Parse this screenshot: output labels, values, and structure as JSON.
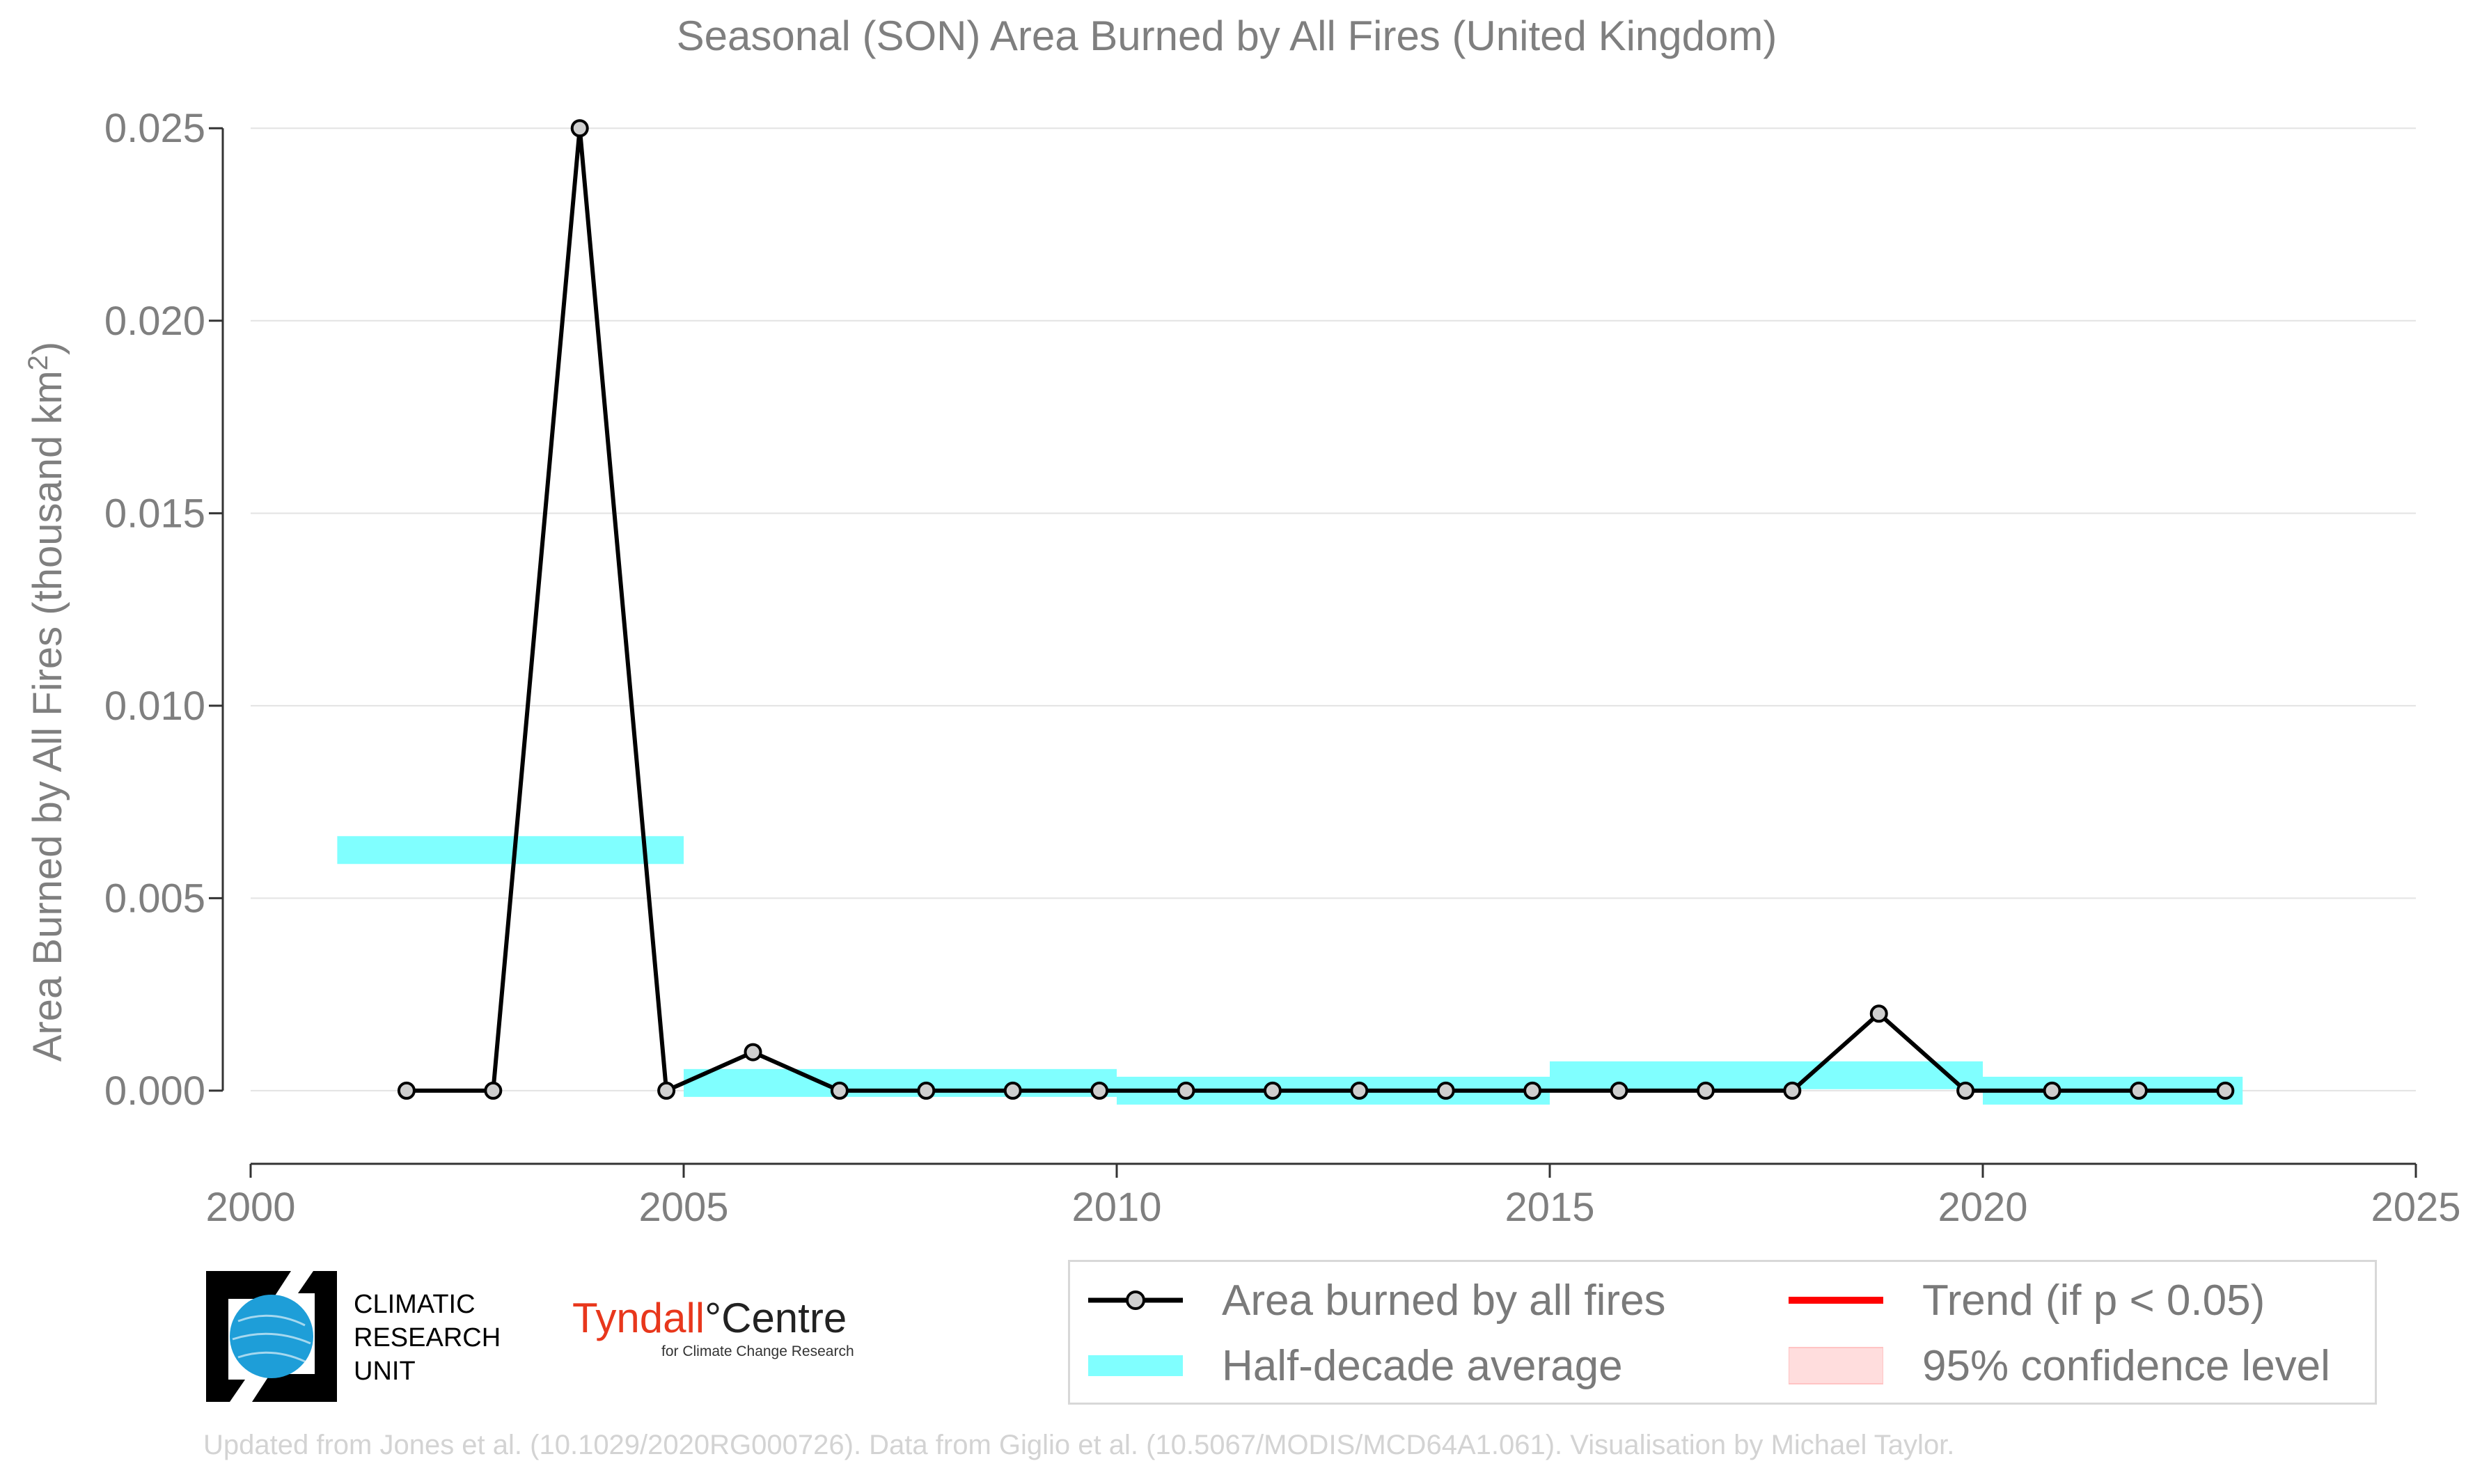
{
  "chart_data": {
    "type": "line",
    "title": "Seasonal (SON) Area Burned by All Fires (United Kingdom)",
    "ylabel_main": "Area Burned by All Fires (thousand km",
    "ylabel_sup": "2",
    "ylabel_end": ")",
    "xlim": [
      2000,
      2025
    ],
    "ylim": [
      -0.0019,
      0.0258
    ],
    "xticks": [
      "2000",
      "2005",
      "2010",
      "2015",
      "2020",
      "2025"
    ],
    "yticks": [
      "0.000",
      "0.005",
      "0.010",
      "0.015",
      "0.020",
      "0.025"
    ],
    "grid": "horizontal",
    "series": [
      {
        "name": "Area burned by all fires",
        "color": "#000000",
        "x": [
          2001.8,
          2002.8,
          2003.8,
          2004.8,
          2005.8,
          2006.8,
          2007.8,
          2008.8,
          2009.8,
          2010.8,
          2011.8,
          2012.8,
          2013.8,
          2014.8,
          2015.8,
          2016.8,
          2017.8,
          2018.8,
          2019.8,
          2020.8,
          2021.8,
          2022.8
        ],
        "values": [
          0.0,
          0.0,
          0.025,
          0.0,
          0.001,
          0.0,
          0.0,
          0.0,
          0.0,
          0.0,
          0.0,
          0.0,
          0.0,
          0.0,
          0.0,
          0.0,
          0.0,
          0.002,
          0.0,
          0.0,
          0.0,
          0.0
        ]
      }
    ],
    "half_decade_average": {
      "name": "Half-decade average",
      "color": "#80ffff",
      "segments": [
        {
          "x_start": 2001,
          "x_end": 2005,
          "value": 0.00625
        },
        {
          "x_start": 2005,
          "x_end": 2010,
          "value": 0.0002
        },
        {
          "x_start": 2010,
          "x_end": 2015,
          "value": 0.0
        },
        {
          "x_start": 2015,
          "x_end": 2020,
          "value": 0.0004
        },
        {
          "x_start": 2020,
          "x_end": 2023,
          "value": 0.0
        }
      ]
    },
    "legend": [
      {
        "label": "Area burned by all fires",
        "key": "line-marker",
        "color": "#000000"
      },
      {
        "label": "Trend (if p < 0.05)",
        "key": "line",
        "color": "#ff0000"
      },
      {
        "label": "Half-decade average",
        "key": "band",
        "color": "#80ffff"
      },
      {
        "label": "95% confidence level",
        "key": "patch",
        "color": "#ffdddd"
      }
    ],
    "legend_position": "bottom-right"
  },
  "logos": {
    "cru": [
      "CLIMATIC",
      "RESEARCH",
      "UNIT"
    ],
    "tyndall_red": "Tyndall",
    "tyndall_degree": "°",
    "tyndall_black": "Centre",
    "tyndall_sub": "for Climate Change Research"
  },
  "credit": "Updated from Jones et al. (10.1029/2020RG000726). Data from Giglio et al. (10.5067/MODIS/MCD64A1.061). Visualisation by Michael Taylor."
}
